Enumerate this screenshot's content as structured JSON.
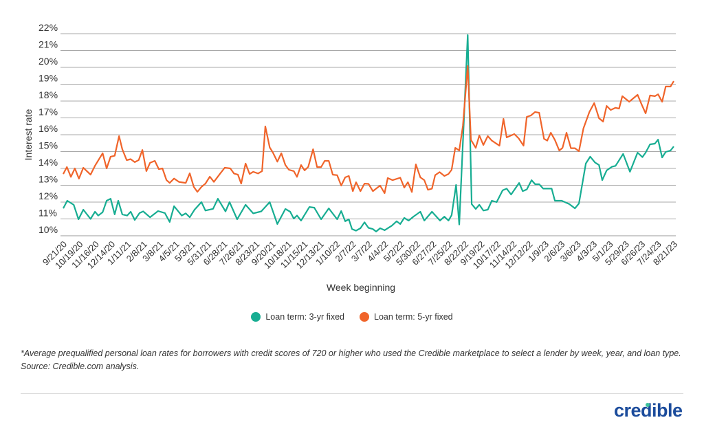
{
  "chart_data": {
    "type": "line",
    "title": "",
    "xlabel": "Week beginning",
    "ylabel": "Interest rate",
    "x_unit": "weeks since 9/21/20",
    "ylim": [
      10,
      22
    ],
    "yticks": [
      "10%",
      "11%",
      "12%",
      "13%",
      "14%",
      "15%",
      "16%",
      "17%",
      "18%",
      "19%",
      "20%",
      "21%",
      "22%"
    ],
    "xticks": [
      "9/21/20",
      "10/19/20",
      "11/16/20",
      "12/14/20",
      "1/11/21",
      "2/8/21",
      "3/8/21",
      "4/5/21",
      "5/3/21",
      "5/31/21",
      "6/28/21",
      "7/26/21",
      "8/23/21",
      "9/20/21",
      "10/18/21",
      "11/15/21",
      "12/13/21",
      "1/10/22",
      "2/7/22",
      "3/7/22",
      "4/4/22",
      "5/2/22",
      "5/30/22",
      "6/27/22",
      "7/25/22",
      "8/22/22",
      "9/19/22",
      "10/17/22",
      "11/14/22",
      "12/12/22",
      "1/9/23",
      "2/6/23",
      "3/6/23",
      "4/3/23",
      "5/1/23",
      "5/29/23",
      "6/26/23",
      "7/24/23",
      "8/21/23"
    ],
    "xtick_step_weeks": 4,
    "grid": true,
    "legend_position": "bottom-center",
    "series": [
      {
        "name": "Loan term: 3-yr fixed",
        "color": "#17ad92",
        "points": [
          [
            0,
            11.63
          ],
          [
            1,
            12.08
          ],
          [
            2.6,
            11.84
          ],
          [
            3.8,
            10.98
          ],
          [
            5,
            11.55
          ],
          [
            6.8,
            11.0
          ],
          [
            7.9,
            11.43
          ],
          [
            8.7,
            11.2
          ],
          [
            9.8,
            11.4
          ],
          [
            10.8,
            12.08
          ],
          [
            11.8,
            12.2
          ],
          [
            12.8,
            11.27
          ],
          [
            13.7,
            12.08
          ],
          [
            14.7,
            11.27
          ],
          [
            15.9,
            11.2
          ],
          [
            16.8,
            11.43
          ],
          [
            17.8,
            10.94
          ],
          [
            19,
            11.35
          ],
          [
            19.9,
            11.45
          ],
          [
            21.6,
            11.1
          ],
          [
            23.6,
            11.47
          ],
          [
            25.3,
            11.35
          ],
          [
            26.5,
            10.82
          ],
          [
            27.6,
            11.76
          ],
          [
            29.5,
            11.2
          ],
          [
            30.5,
            11.33
          ],
          [
            31.5,
            11.1
          ],
          [
            32.7,
            11.55
          ],
          [
            34.4,
            12.0
          ],
          [
            35.4,
            11.5
          ],
          [
            37.3,
            11.6
          ],
          [
            38.5,
            12.2
          ],
          [
            40.4,
            11.45
          ],
          [
            41.4,
            12.0
          ],
          [
            43.3,
            10.98
          ],
          [
            45.4,
            11.84
          ],
          [
            47.3,
            11.33
          ],
          [
            49.3,
            11.45
          ],
          [
            51.4,
            12.0
          ],
          [
            53.3,
            10.7
          ],
          [
            55.3,
            11.59
          ],
          [
            56.5,
            11.43
          ],
          [
            57.4,
            11.02
          ],
          [
            58.2,
            11.2
          ],
          [
            59.2,
            10.9
          ],
          [
            61.3,
            11.71
          ],
          [
            62.5,
            11.67
          ],
          [
            64.2,
            10.98
          ],
          [
            66.1,
            11.63
          ],
          [
            68.2,
            10.98
          ],
          [
            69.2,
            11.47
          ],
          [
            70.2,
            10.86
          ],
          [
            71.1,
            10.98
          ],
          [
            71.9,
            10.4
          ],
          [
            72.9,
            10.3
          ],
          [
            74,
            10.45
          ],
          [
            75,
            10.8
          ],
          [
            76,
            10.47
          ],
          [
            77.1,
            10.4
          ],
          [
            77.9,
            10.25
          ],
          [
            78.9,
            10.45
          ],
          [
            80,
            10.33
          ],
          [
            81.8,
            10.6
          ],
          [
            83,
            10.86
          ],
          [
            83.9,
            10.7
          ],
          [
            84.9,
            11.06
          ],
          [
            86,
            10.9
          ],
          [
            87.2,
            11.14
          ],
          [
            88.9,
            11.43
          ],
          [
            89.9,
            10.9
          ],
          [
            91.8,
            11.43
          ],
          [
            93.8,
            10.9
          ],
          [
            94.9,
            11.14
          ],
          [
            95.9,
            10.9
          ],
          [
            96.7,
            11.22
          ],
          [
            97.8,
            13.02
          ],
          [
            98.6,
            10.67
          ],
          [
            100.7,
            21.92
          ],
          [
            101.7,
            11.88
          ],
          [
            102.7,
            11.59
          ],
          [
            103.6,
            11.84
          ],
          [
            104.6,
            11.5
          ],
          [
            105.7,
            11.55
          ],
          [
            106.7,
            12.08
          ],
          [
            107.9,
            12.0
          ],
          [
            109.4,
            12.7
          ],
          [
            110.4,
            12.8
          ],
          [
            111.5,
            12.45
          ],
          [
            113.5,
            13.14
          ],
          [
            114.4,
            12.65
          ],
          [
            115.4,
            12.75
          ],
          [
            116.6,
            13.3
          ],
          [
            117.5,
            13.06
          ],
          [
            118.5,
            13.06
          ],
          [
            119.5,
            12.8
          ],
          [
            121.6,
            12.8
          ],
          [
            122.4,
            12.08
          ],
          [
            124.1,
            12.08
          ],
          [
            126,
            11.88
          ],
          [
            127.4,
            11.63
          ],
          [
            128.4,
            11.92
          ],
          [
            130.1,
            14.29
          ],
          [
            131.2,
            14.7
          ],
          [
            132.4,
            14.35
          ],
          [
            133.4,
            14.2
          ],
          [
            134.2,
            13.3
          ],
          [
            135.3,
            13.88
          ],
          [
            136.6,
            14.1
          ],
          [
            137.5,
            14.15
          ],
          [
            139.4,
            14.86
          ],
          [
            141.1,
            13.8
          ],
          [
            143,
            14.94
          ],
          [
            144.2,
            14.67
          ],
          [
            145,
            14.94
          ],
          [
            146.1,
            15.43
          ],
          [
            147.3,
            15.47
          ],
          [
            148.1,
            15.71
          ],
          [
            149.1,
            14.65
          ],
          [
            150,
            14.98
          ],
          [
            151.2,
            15.06
          ],
          [
            152,
            15.3
          ]
        ]
      },
      {
        "name": "Loan term: 5-yr fixed",
        "color": "#f0642a",
        "points": [
          [
            0,
            13.67
          ],
          [
            0.9,
            14.08
          ],
          [
            1.9,
            13.5
          ],
          [
            2.9,
            14.0
          ],
          [
            3.9,
            13.39
          ],
          [
            5,
            14.04
          ],
          [
            6.8,
            13.63
          ],
          [
            7.9,
            14.16
          ],
          [
            9.8,
            14.9
          ],
          [
            10.8,
            14.0
          ],
          [
            11.8,
            14.7
          ],
          [
            12.8,
            14.75
          ],
          [
            13.9,
            15.92
          ],
          [
            14.7,
            15.14
          ],
          [
            15.8,
            14.49
          ],
          [
            16.8,
            14.55
          ],
          [
            17.8,
            14.37
          ],
          [
            18.8,
            14.5
          ],
          [
            19.7,
            15.1
          ],
          [
            20.7,
            13.84
          ],
          [
            21.6,
            14.33
          ],
          [
            22.8,
            14.45
          ],
          [
            23.8,
            13.96
          ],
          [
            24.7,
            14.0
          ],
          [
            25.7,
            13.31
          ],
          [
            26.5,
            13.14
          ],
          [
            27.6,
            13.4
          ],
          [
            28.8,
            13.2
          ],
          [
            30.5,
            13.14
          ],
          [
            31.5,
            13.71
          ],
          [
            32.5,
            12.9
          ],
          [
            33.4,
            12.61
          ],
          [
            34.4,
            12.9
          ],
          [
            35.4,
            13.1
          ],
          [
            36.5,
            13.51
          ],
          [
            37.5,
            13.2
          ],
          [
            39,
            13.67
          ],
          [
            40.2,
            14.04
          ],
          [
            41.6,
            14.0
          ],
          [
            42.5,
            13.7
          ],
          [
            43.5,
            13.63
          ],
          [
            44.3,
            13.1
          ],
          [
            45.4,
            14.29
          ],
          [
            46.4,
            13.67
          ],
          [
            47.3,
            13.8
          ],
          [
            48.5,
            13.7
          ],
          [
            49.5,
            13.84
          ],
          [
            50.3,
            16.5
          ],
          [
            51.4,
            15.25
          ],
          [
            52.2,
            14.94
          ],
          [
            53.3,
            14.4
          ],
          [
            54.3,
            14.9
          ],
          [
            55.3,
            14.2
          ],
          [
            56.2,
            13.92
          ],
          [
            57.4,
            13.84
          ],
          [
            58.2,
            13.5
          ],
          [
            59.2,
            14.2
          ],
          [
            60.1,
            13.88
          ],
          [
            61,
            14.1
          ],
          [
            62.2,
            15.14
          ],
          [
            63.2,
            14.08
          ],
          [
            64.2,
            14.08
          ],
          [
            65.1,
            14.45
          ],
          [
            66.1,
            14.45
          ],
          [
            67.1,
            13.63
          ],
          [
            68.2,
            13.6
          ],
          [
            69.2,
            12.98
          ],
          [
            70.2,
            13.47
          ],
          [
            71.1,
            13.55
          ],
          [
            72.1,
            12.65
          ],
          [
            72.9,
            13.18
          ],
          [
            74,
            12.65
          ],
          [
            75,
            13.1
          ],
          [
            76,
            13.08
          ],
          [
            77.1,
            12.65
          ],
          [
            77.9,
            12.8
          ],
          [
            78.9,
            12.98
          ],
          [
            80,
            12.53
          ],
          [
            80.8,
            13.43
          ],
          [
            82,
            13.3
          ],
          [
            83.9,
            13.45
          ],
          [
            84.9,
            12.86
          ],
          [
            85.8,
            13.18
          ],
          [
            86.8,
            12.6
          ],
          [
            87.8,
            14.24
          ],
          [
            88.9,
            13.47
          ],
          [
            89.9,
            13.3
          ],
          [
            90.8,
            12.73
          ],
          [
            91.8,
            12.8
          ],
          [
            92.6,
            13.6
          ],
          [
            93.7,
            13.78
          ],
          [
            94.9,
            13.55
          ],
          [
            95.9,
            13.67
          ],
          [
            96.7,
            13.92
          ],
          [
            97.6,
            15.22
          ],
          [
            98.6,
            15.06
          ],
          [
            99.5,
            16.53
          ],
          [
            100.7,
            20.08
          ],
          [
            101.5,
            15.7
          ],
          [
            102.7,
            15.22
          ],
          [
            103.6,
            15.96
          ],
          [
            104.6,
            15.39
          ],
          [
            105.7,
            15.92
          ],
          [
            106.7,
            15.65
          ],
          [
            108.6,
            15.35
          ],
          [
            109.6,
            16.94
          ],
          [
            110.4,
            15.84
          ],
          [
            112.3,
            16.04
          ],
          [
            113.4,
            15.78
          ],
          [
            114.6,
            15.35
          ],
          [
            115.4,
            17.06
          ],
          [
            116.4,
            17.14
          ],
          [
            117.5,
            17.35
          ],
          [
            118.5,
            17.3
          ],
          [
            119.7,
            15.76
          ],
          [
            120.5,
            15.65
          ],
          [
            121.4,
            16.12
          ],
          [
            122.4,
            15.69
          ],
          [
            123.5,
            15.06
          ],
          [
            124.3,
            15.22
          ],
          [
            125.3,
            16.12
          ],
          [
            126.4,
            15.2
          ],
          [
            127.4,
            15.2
          ],
          [
            128.4,
            15.02
          ],
          [
            129.5,
            16.37
          ],
          [
            131,
            17.35
          ],
          [
            132.2,
            17.88
          ],
          [
            133.4,
            16.98
          ],
          [
            134.4,
            16.78
          ],
          [
            135.3,
            17.71
          ],
          [
            136.3,
            17.47
          ],
          [
            137.5,
            17.6
          ],
          [
            138.4,
            17.55
          ],
          [
            139.2,
            18.29
          ],
          [
            140.9,
            17.96
          ],
          [
            143,
            18.37
          ],
          [
            144,
            17.8
          ],
          [
            145,
            17.27
          ],
          [
            146.1,
            18.33
          ],
          [
            147.3,
            18.29
          ],
          [
            148.1,
            18.4
          ],
          [
            149.1,
            17.96
          ],
          [
            150,
            18.86
          ],
          [
            151.2,
            18.86
          ],
          [
            152,
            19.18
          ]
        ]
      }
    ]
  },
  "legend": {
    "items": [
      {
        "label": "Loan term: 3-yr fixed",
        "color": "#17ad92"
      },
      {
        "label": "Loan term: 5-yr fixed",
        "color": "#f0642a"
      }
    ]
  },
  "footnote": "*Average prequalified personal loan rates for borrowers with credit scores of 720 or higher who used the Credible marketplace to select a lender by week, year, and loan type. Source: Credible.com analysis.",
  "logo": {
    "text": "credible"
  }
}
